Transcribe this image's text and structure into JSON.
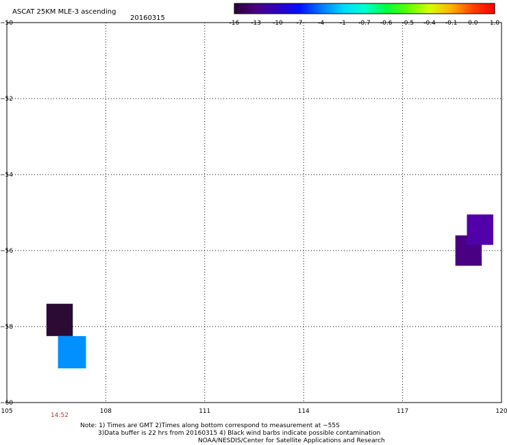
{
  "chart_data": {
    "type": "heatmap",
    "title": "ASCAT 25KM MLE-3 ascending",
    "date": "20160315",
    "xlim": [
      105,
      120
    ],
    "ylim": [
      -60,
      -50
    ],
    "x_ticks": [
      105,
      108,
      111,
      114,
      117,
      120
    ],
    "y_ticks": [
      -50,
      -52,
      -54,
      -56,
      -58,
      -60
    ],
    "grid": true,
    "colorbar": {
      "labels": [
        "-16",
        "-13",
        "-10",
        "-7",
        "-4",
        "-1",
        "-0.7",
        "-0.6",
        "-0.5",
        "-0.4",
        "-0.1",
        "0.0",
        "1.0"
      ],
      "colors": [
        "#2a0038",
        "#4b0082",
        "#2f00c0",
        "#0010ff",
        "#0078ff",
        "#00d8ff",
        "#00ffd0",
        "#00ff40",
        "#60ff00",
        "#d8ff00",
        "#ffb000",
        "#ff4000",
        "#ff0000"
      ]
    },
    "cells": [
      {
        "x0": 106.2,
        "x1": 107.0,
        "y0": -57.4,
        "y1": -58.25,
        "color": "#2b0a33"
      },
      {
        "x0": 106.55,
        "x1": 107.4,
        "y0": -58.25,
        "y1": -59.1,
        "color": "#0090ff"
      },
      {
        "x0": 118.6,
        "x1": 119.4,
        "y0": -55.6,
        "y1": -56.4,
        "color": "#4a0082"
      },
      {
        "x0": 118.95,
        "x1": 119.75,
        "y0": -55.05,
        "y1": -55.85,
        "color": "#5200aa"
      }
    ],
    "time_label": "14:52",
    "time_label_x": 106.6
  },
  "notes": {
    "line1": "Note: 1) Times are GMT 2)Times along bottom correspond to measurement at −55S",
    "line2": "3)Data buffer is 22 hrs from 20160315 4) Black wind barbs indicate possible contamination",
    "line3": "NOAA/NESDIS/Center for Satellite Applications and Research"
  }
}
